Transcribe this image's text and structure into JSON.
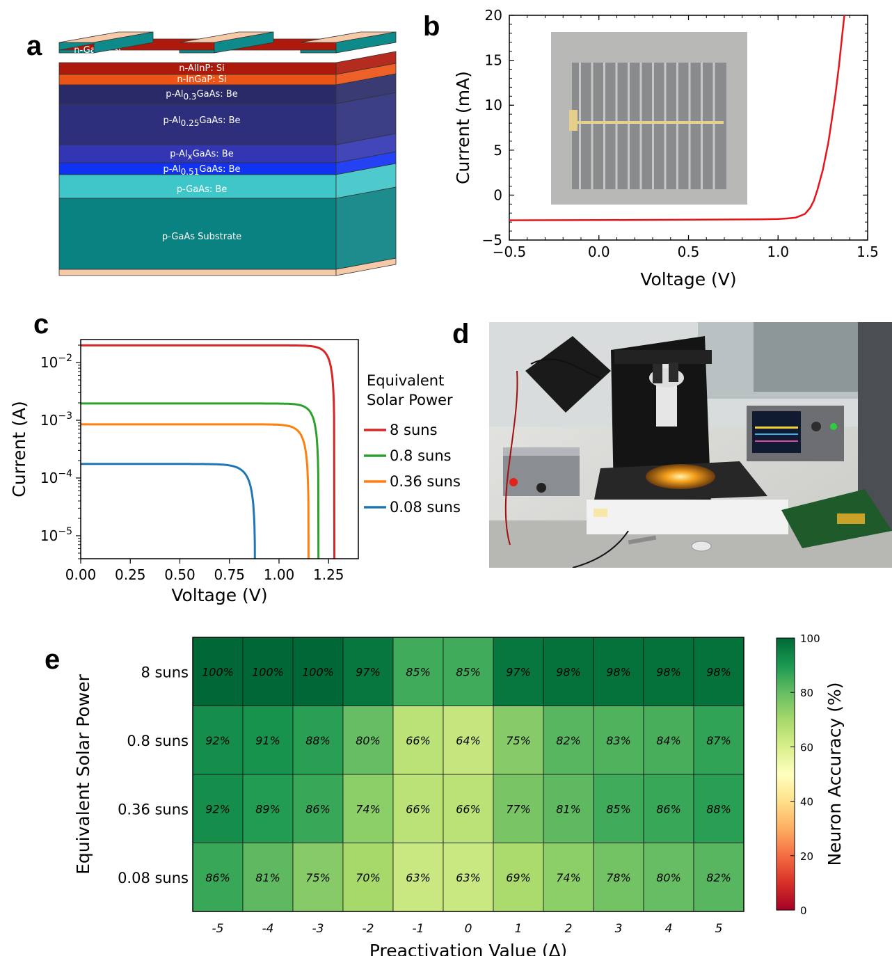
{
  "panels": {
    "a": {
      "letter": "a",
      "layers": [
        {
          "label": "n-GaAs: Si",
          "color": "#0e8a8a"
        },
        {
          "label": "n-AlInP: Si",
          "color": "#ad1a0c"
        },
        {
          "label": "n-InGaP: Si",
          "color": "#ec5316"
        },
        {
          "label": "p-Al0.3GaAs: Be",
          "color": "#2a2a68"
        },
        {
          "label": "p-Al0.25GaAs: Be",
          "color": "#2d2f7c"
        },
        {
          "label": "p-AlxGaAs: Be",
          "color": "#3336b3"
        },
        {
          "label": "p-Al0.51GaAs: Be",
          "color": "#1132f2"
        },
        {
          "label": "p-GaAs: Be",
          "color": "#3fc6c9"
        },
        {
          "label": "p-GaAs Substrate",
          "color": "#0b8282"
        }
      ],
      "contact_color": "#f6c9a8"
    },
    "b": {
      "letter": "b",
      "photo_desc": "solar cell photograph"
    },
    "c": {
      "letter": "c"
    },
    "d": {
      "letter": "d"
    },
    "e": {
      "letter": "e"
    }
  },
  "chart_data": [
    {
      "id": "b",
      "type": "line",
      "xlabel": "Voltage (V)",
      "ylabel": "Current (mA)",
      "xlim": [
        -0.5,
        1.5
      ],
      "ylim": [
        -5,
        20
      ],
      "xticks": [
        "−0.5",
        "0.0",
        "0.5",
        "1.0",
        "1.5"
      ],
      "yticks": [
        "−5",
        "0",
        "5",
        "10",
        "15",
        "20"
      ],
      "series": [
        {
          "color": "#e8141c",
          "x": [
            -0.5,
            0.0,
            0.5,
            0.9,
            1.0,
            1.05,
            1.1,
            1.15,
            1.18,
            1.2,
            1.22,
            1.25,
            1.28,
            1.3,
            1.32,
            1.34,
            1.36,
            1.37
          ],
          "y": [
            -2.8,
            -2.78,
            -2.74,
            -2.7,
            -2.66,
            -2.6,
            -2.5,
            -2.1,
            -1.4,
            -0.6,
            0.6,
            2.8,
            5.8,
            8.4,
            11.2,
            14.4,
            18.2,
            20.0
          ]
        }
      ]
    },
    {
      "id": "c",
      "type": "line",
      "xlabel": "Voltage (V)",
      "ylabel": "Current (A)",
      "yscale": "log",
      "xlim": [
        0,
        1.4
      ],
      "ylim": [
        4e-06,
        0.025
      ],
      "xticks": [
        "0.00",
        "0.25",
        "0.50",
        "0.75",
        "1.00",
        "1.25"
      ],
      "yticks": [
        {
          "base": "10",
          "exp": "−2",
          "value": 0.01
        },
        {
          "base": "10",
          "exp": "−3",
          "value": 0.001
        },
        {
          "base": "10",
          "exp": "−4",
          "value": 0.0001
        },
        {
          "base": "10",
          "exp": "−5",
          "value": 1e-05
        }
      ],
      "legend": {
        "title_lines": [
          "Equivalent",
          "Solar Power"
        ],
        "position": "right"
      },
      "series": [
        {
          "name": "8 suns",
          "color": "#d62728",
          "isc": 0.0198,
          "voc": 1.28,
          "n": 0.034
        },
        {
          "name": "0.8 suns",
          "color": "#2ca02c",
          "isc": 0.00195,
          "voc": 1.2,
          "n": 0.034
        },
        {
          "name": "0.36 suns",
          "color": "#ff7f0e",
          "isc": 0.00085,
          "voc": 1.15,
          "n": 0.037
        },
        {
          "name": "0.08 suns",
          "color": "#1f77b4",
          "isc": 0.000175,
          "voc": 0.88,
          "n": 0.045
        }
      ]
    },
    {
      "id": "e",
      "type": "heatmap",
      "xlabel": "Preactivation Value (∆)",
      "ylabel": "Equivalent Solar Power",
      "colorbar_label": "Neuron Accuracy (%)",
      "colorbar_ticks": [
        "0",
        "20",
        "40",
        "60",
        "80",
        "100"
      ],
      "colorbar_range": [
        0,
        100
      ],
      "x": [
        "-5",
        "-4",
        "-3",
        "-2",
        "-1",
        "0",
        "1",
        "2",
        "3",
        "4",
        "5"
      ],
      "y": [
        "8 suns",
        "0.8 suns",
        "0.36 suns",
        "0.08 suns"
      ],
      "values": [
        [
          100,
          100,
          100,
          97,
          85,
          85,
          97,
          98,
          98,
          98,
          98
        ],
        [
          92,
          91,
          88,
          80,
          66,
          64,
          75,
          82,
          83,
          84,
          87
        ],
        [
          92,
          89,
          86,
          74,
          66,
          66,
          77,
          81,
          85,
          86,
          88
        ],
        [
          86,
          81,
          75,
          70,
          63,
          63,
          69,
          74,
          78,
          80,
          82
        ]
      ],
      "cell_labels": [
        [
          "100%",
          "100%",
          "100%",
          "97%",
          "85%",
          "85%",
          "97%",
          "98%",
          "98%",
          "98%",
          "98%"
        ],
        [
          "92%",
          "91%",
          "88%",
          "80%",
          "66%",
          "64%",
          "75%",
          "82%",
          "83%",
          "84%",
          "87%"
        ],
        [
          "92%",
          "89%",
          "86%",
          "74%",
          "66%",
          "66%",
          "77%",
          "81%",
          "85%",
          "86%",
          "88%"
        ],
        [
          "86%",
          "81%",
          "75%",
          "70%",
          "63%",
          "63%",
          "69%",
          "74%",
          "78%",
          "80%",
          "82%"
        ]
      ]
    }
  ]
}
